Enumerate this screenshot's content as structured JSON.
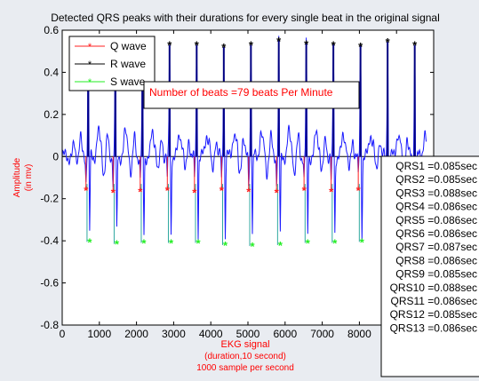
{
  "colors": {
    "background": "#e9ecf1",
    "plot_bg": "#ffffff",
    "signal": "#1a1aff",
    "peak_r": "#000080",
    "q_wave": "#ff2020",
    "r_wave": "#000000",
    "s_wave": "#22ee22",
    "onset_line": "#2fa8a0",
    "red_text": "#ff0000"
  },
  "chart_data": {
    "type": "line",
    "title": "Detected QRS peaks with their durations for every single beat in the original signal",
    "xlabel_lines": [
      "EKG signal",
      "(duration,10 second)",
      "1000 sample per second"
    ],
    "ylabel_lines": [
      "Amplitude",
      "(in mv)"
    ],
    "xlim": [
      0,
      10000
    ],
    "ylim": [
      -0.8,
      0.6
    ],
    "x_ticks": [
      0,
      1000,
      2000,
      3000,
      4000,
      5000,
      6000,
      7000,
      8000,
      9000,
      10000
    ],
    "x_tick_labels": [
      "0",
      "1000",
      "2000",
      "3000",
      "4000",
      "5000",
      "6000",
      "7000",
      "8000",
      "9000",
      "10000"
    ],
    "y_ticks": [
      -0.8,
      -0.6,
      -0.4,
      -0.2,
      0,
      0.2,
      0.4,
      0.6
    ],
    "y_tick_labels": [
      "-0.8",
      "-0.6",
      "-0.4",
      "-0.2",
      "0",
      "0.2",
      "0.4",
      "0.6"
    ],
    "grid": false,
    "legend_position": "top-left",
    "legend": [
      {
        "label": "Q wave",
        "color": "#ff2020"
      },
      {
        "label": "R wave",
        "color": "#000000"
      },
      {
        "label": "S wave",
        "color": "#22ee22"
      }
    ],
    "annotation": "Number of beats =79  beats Per Minute",
    "series": [
      {
        "name": "Q wave",
        "x": [
          640,
          1370,
          2100,
          2830,
          3560,
          4290,
          5020,
          5770,
          6510,
          7240,
          7970,
          8700,
          9430
        ],
        "y": [
          -0.16,
          -0.17,
          -0.165,
          -0.16,
          -0.17,
          -0.16,
          -0.165,
          -0.17,
          -0.16,
          -0.165,
          -0.16,
          -0.17,
          -0.165
        ]
      },
      {
        "name": "R wave",
        "x": [
          700,
          1430,
          2160,
          2890,
          3620,
          4350,
          5080,
          5830,
          6570,
          7300,
          8030,
          8760,
          9490
        ],
        "y": [
          0.53,
          0.53,
          0.53,
          0.53,
          0.53,
          0.52,
          0.53,
          0.55,
          0.535,
          0.53,
          0.525,
          0.545,
          0.53
        ]
      },
      {
        "name": "S wave",
        "x": [
          740,
          1470,
          2200,
          2930,
          3660,
          4390,
          5120,
          5870,
          6610,
          7340,
          8070,
          8800,
          9530
        ],
        "y": [
          -0.405,
          -0.415,
          -0.41,
          -0.41,
          -0.41,
          -0.42,
          -0.425,
          -0.42,
          -0.41,
          -0.41,
          -0.405,
          -0.42,
          -0.42
        ]
      }
    ],
    "qrs_durations": [
      "QRS1 =0.085sec",
      "QRS2 =0.085sec",
      "QRS3 =0.088sec",
      "QRS4 =0.086sec",
      "QRS5 =0.086sec",
      "QRS6 =0.086sec",
      "QRS7 =0.087sec",
      "QRS8 =0.086sec",
      "QRS9 =0.085sec",
      "QRS10 =0.088sec",
      "QRS11 =0.086sec",
      "QRS12 =0.085sec",
      "QRS13 =0.086sec"
    ]
  }
}
